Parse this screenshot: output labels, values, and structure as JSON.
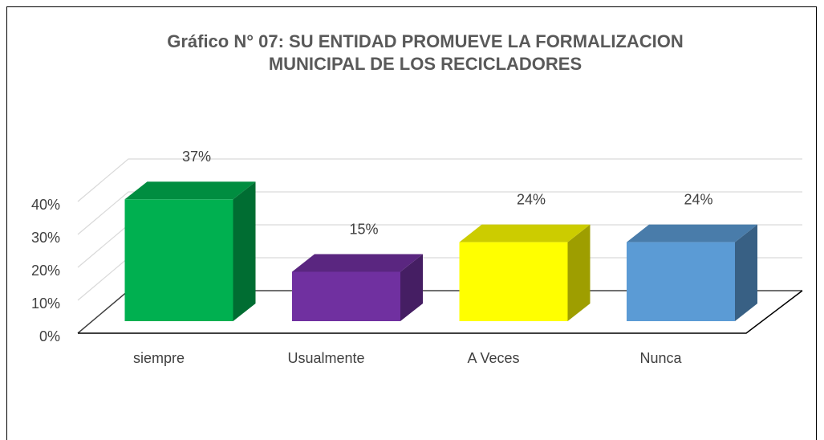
{
  "chart_data": {
    "type": "bar3d",
    "title": "Gráfico N° 07: SU ENTIDAD PROMUEVE LA FORMALIZACION MUNICIPAL DE LOS RECICLADORES",
    "categories": [
      "siempre",
      "Usualmente",
      "A Veces",
      "Nunca"
    ],
    "values": [
      37,
      15,
      24,
      24
    ],
    "value_labels": [
      "37%",
      "15%",
      "24%",
      "24%"
    ],
    "colors": [
      "#00b050",
      "#7030a0",
      "#ffff00",
      "#5b9bd5"
    ],
    "ylim": [
      0,
      40
    ],
    "yticks": [
      {
        "value": 0,
        "label": "0%"
      },
      {
        "value": 10,
        "label": "10%"
      },
      {
        "value": 20,
        "label": "20%"
      },
      {
        "value": 30,
        "label": "30%"
      },
      {
        "value": 40,
        "label": "40%"
      }
    ],
    "grid": true
  }
}
